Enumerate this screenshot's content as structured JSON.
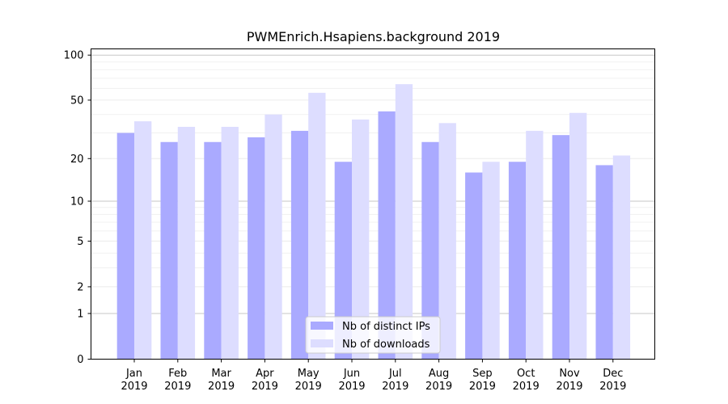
{
  "chart_data": {
    "type": "bar",
    "title": "PWMEnrich.Hsapiens.background 2019",
    "xlabel": "",
    "ylabel": "",
    "y_scale": "log1p",
    "ylim": [
      0,
      110
    ],
    "y_ticks": [
      0,
      1,
      2,
      5,
      10,
      20,
      50,
      100
    ],
    "y_tick_labels": [
      "0",
      "1",
      "2",
      "5",
      "10",
      "20",
      "50",
      "100"
    ],
    "grid": true,
    "legend_position": "bottom-center",
    "categories": [
      [
        "Jan",
        "2019"
      ],
      [
        "Feb",
        "2019"
      ],
      [
        "Mar",
        "2019"
      ],
      [
        "Apr",
        "2019"
      ],
      [
        "May",
        "2019"
      ],
      [
        "Jun",
        "2019"
      ],
      [
        "Jul",
        "2019"
      ],
      [
        "Aug",
        "2019"
      ],
      [
        "Sep",
        "2019"
      ],
      [
        "Oct",
        "2019"
      ],
      [
        "Nov",
        "2019"
      ],
      [
        "Dec",
        "2019"
      ]
    ],
    "series": [
      {
        "name": "Nb of distinct IPs",
        "color": "#aaaaff",
        "values": [
          30,
          26,
          26,
          28,
          31,
          19,
          42,
          26,
          16,
          19,
          29,
          18
        ]
      },
      {
        "name": "Nb of downloads",
        "color": "#ddddff",
        "values": [
          36,
          33,
          33,
          40,
          56,
          37,
          64,
          35,
          19,
          31,
          41,
          21
        ]
      }
    ]
  }
}
